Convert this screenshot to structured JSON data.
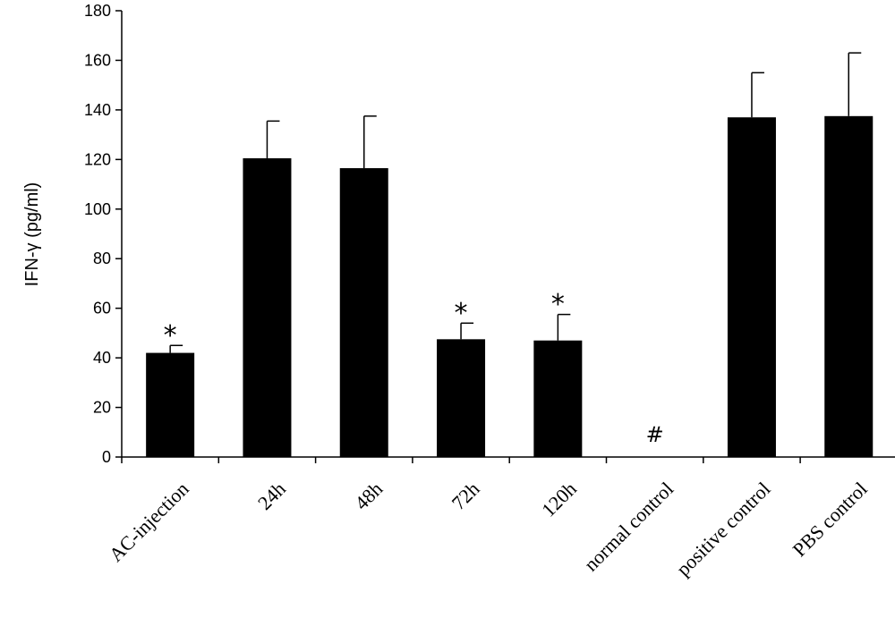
{
  "chart_data": {
    "type": "bar",
    "ylabel": "IFN-γ (pg/ml)",
    "xlabel": "",
    "ylim": [
      0,
      180
    ],
    "yticks": [
      0,
      20,
      40,
      60,
      80,
      100,
      120,
      140,
      160,
      180
    ],
    "grid": false,
    "categories": [
      "AC-injection",
      "24h",
      "48h",
      "72h",
      "120h",
      "normal control",
      "positive control",
      "PBS control"
    ],
    "values": [
      42,
      120.5,
      116.5,
      47.5,
      47,
      0,
      137,
      137.5
    ],
    "error": [
      3,
      15,
      21,
      6.5,
      10.5,
      0,
      18,
      25.5
    ],
    "annotations": [
      "*",
      "",
      "",
      "*",
      "*",
      "#",
      "",
      ""
    ],
    "bar_color": "#000000"
  }
}
